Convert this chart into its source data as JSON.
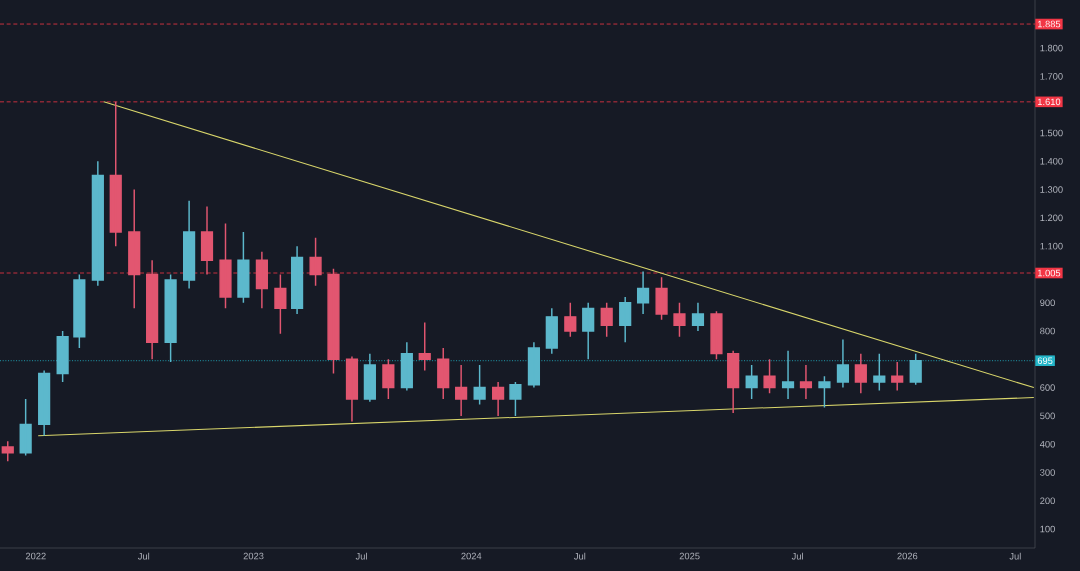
{
  "chart_data": {
    "type": "candlestick",
    "x": [
      "2021-11-15",
      "2021-12-15",
      "2022-01-15",
      "2022-02-15",
      "2022-03-15",
      "2022-04-15",
      "2022-05-15",
      "2022-06-15",
      "2022-07-15",
      "2022-08-15",
      "2022-09-15",
      "2022-10-15",
      "2022-11-15",
      "2022-12-15",
      "2023-01-15",
      "2023-02-15",
      "2023-03-15",
      "2023-04-15",
      "2023-05-15",
      "2023-06-15",
      "2023-07-15",
      "2023-08-15",
      "2023-09-15",
      "2023-10-15",
      "2023-11-15",
      "2023-12-15",
      "2024-01-15",
      "2024-02-15",
      "2024-03-15",
      "2024-04-15",
      "2024-05-15",
      "2024-06-15",
      "2024-07-15",
      "2024-08-15",
      "2024-09-15",
      "2024-10-15",
      "2024-11-15",
      "2024-12-15",
      "2025-01-15",
      "2025-02-15",
      "2025-03-15",
      "2025-04-15",
      "2025-05-15",
      "2025-06-15",
      "2025-07-15",
      "2025-08-15",
      "2025-09-15",
      "2025-10-15",
      "2025-11-15",
      "2025-12-15",
      "2026-01-15"
    ],
    "ohlc": [
      [
        390,
        410,
        340,
        370
      ],
      [
        370,
        560,
        360,
        470
      ],
      [
        470,
        660,
        430,
        650
      ],
      [
        650,
        800,
        620,
        780
      ],
      [
        780,
        1000,
        740,
        980
      ],
      [
        980,
        1400,
        960,
        1350
      ],
      [
        1350,
        1610,
        1100,
        1150
      ],
      [
        1150,
        1300,
        880,
        1000
      ],
      [
        1000,
        1050,
        700,
        760
      ],
      [
        760,
        1000,
        690,
        980
      ],
      [
        980,
        1260,
        950,
        1150
      ],
      [
        1150,
        1240,
        1000,
        1050
      ],
      [
        1050,
        1180,
        880,
        920
      ],
      [
        920,
        1150,
        900,
        1050
      ],
      [
        1050,
        1080,
        880,
        950
      ],
      [
        950,
        1000,
        790,
        880
      ],
      [
        880,
        1100,
        860,
        1060
      ],
      [
        1060,
        1130,
        960,
        1000
      ],
      [
        1000,
        1020,
        650,
        700
      ],
      [
        700,
        710,
        480,
        560
      ],
      [
        560,
        720,
        550,
        680
      ],
      [
        680,
        700,
        560,
        600
      ],
      [
        600,
        760,
        590,
        720
      ],
      [
        720,
        830,
        660,
        700
      ],
      [
        700,
        740,
        560,
        600
      ],
      [
        600,
        680,
        500,
        560
      ],
      [
        560,
        680,
        540,
        600
      ],
      [
        600,
        620,
        500,
        560
      ],
      [
        560,
        620,
        500,
        610
      ],
      [
        610,
        760,
        600,
        740
      ],
      [
        740,
        880,
        720,
        850
      ],
      [
        850,
        900,
        780,
        800
      ],
      [
        800,
        900,
        700,
        880
      ],
      [
        880,
        900,
        780,
        820
      ],
      [
        820,
        920,
        760,
        900
      ],
      [
        900,
        1010,
        860,
        950
      ],
      [
        950,
        990,
        840,
        860
      ],
      [
        860,
        900,
        780,
        820
      ],
      [
        820,
        900,
        800,
        860
      ],
      [
        860,
        870,
        700,
        720
      ],
      [
        720,
        730,
        510,
        600
      ],
      [
        600,
        680,
        560,
        640
      ],
      [
        640,
        700,
        580,
        600
      ],
      [
        600,
        730,
        560,
        620
      ],
      [
        620,
        680,
        560,
        600
      ],
      [
        600,
        640,
        530,
        620
      ],
      [
        620,
        770,
        600,
        680
      ],
      [
        680,
        720,
        580,
        620
      ],
      [
        620,
        720,
        590,
        640
      ],
      [
        640,
        690,
        590,
        620
      ],
      [
        620,
        720,
        610,
        695
      ]
    ],
    "series": [
      {
        "type": "line",
        "color": "#d9d66b",
        "x": [
          "2022-04-25",
          "2026-08-01"
        ],
        "values": [
          1610,
          600
        ]
      },
      {
        "type": "line",
        "color": "#d9d66b",
        "x": [
          "2022-01-05",
          "2026-08-01"
        ],
        "values": [
          430,
          565
        ]
      }
    ],
    "xlim": [
      "2021-11-02",
      "2026-08-03"
    ],
    "xticks": [
      {
        "value": "2022-01-01",
        "label": "2022"
      },
      {
        "value": "2022-07-01",
        "label": "Jul"
      },
      {
        "value": "2023-01-01",
        "label": "2023"
      },
      {
        "value": "2023-07-01",
        "label": "Jul"
      },
      {
        "value": "2024-01-01",
        "label": "2024"
      },
      {
        "value": "2024-07-01",
        "label": "Jul"
      },
      {
        "value": "2025-01-01",
        "label": "2025"
      },
      {
        "value": "2025-07-01",
        "label": "Jul"
      },
      {
        "value": "2026-01-01",
        "label": "2026"
      },
      {
        "value": "2026-07-01",
        "label": "Jul"
      }
    ],
    "ylim": [
      33,
      1970
    ],
    "yticks": [
      100,
      200,
      300,
      400,
      500,
      600,
      700,
      800,
      900,
      {
        "value": 1100,
        "label": "1.100"
      },
      {
        "value": 1200,
        "label": "1.200"
      },
      {
        "value": 1300,
        "label": "1.300"
      },
      {
        "value": 1400,
        "label": "1.400"
      },
      {
        "value": 1500,
        "label": "1.500"
      },
      {
        "value": 1700,
        "label": "1.700"
      },
      {
        "value": 1800,
        "label": "1.800"
      }
    ],
    "ref_lines": [
      {
        "axis": "y",
        "value": 1885,
        "label": "1.885",
        "color": "#f23645",
        "line_style": "dashed"
      },
      {
        "axis": "y",
        "value": 1610,
        "label": "1.610",
        "color": "#f23645",
        "line_style": "dashed"
      },
      {
        "axis": "y",
        "value": 1005,
        "label": "1.005",
        "color": "#f23645",
        "line_style": "dashed"
      },
      {
        "axis": "y",
        "value": 695,
        "label": "695",
        "color": "#22b5c8",
        "line_style": "dotted"
      }
    ]
  }
}
